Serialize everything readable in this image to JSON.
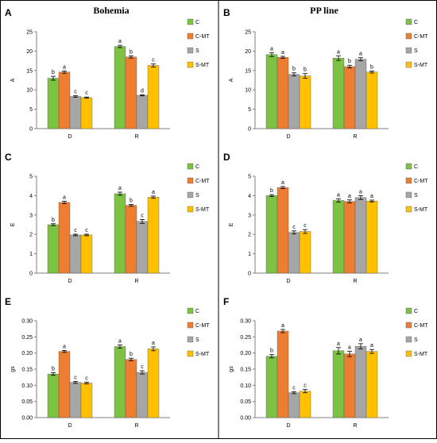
{
  "colors": {
    "C": "#7dc242",
    "C-MT": "#ed7d31",
    "S": "#a6a6a6",
    "S-MT": "#ffc000",
    "frame": "#000000",
    "axis": "#808080",
    "bar_outline": "#595959"
  },
  "columns": [
    {
      "title": "Bohemia"
    },
    {
      "title": "PP line"
    }
  ],
  "legend": [
    "C",
    "C-MT",
    "S",
    "S-MT"
  ],
  "chart_data": [
    {
      "panel_letter": "A",
      "type": "bar",
      "categories": [
        "D",
        "R"
      ],
      "ylabel": "A",
      "ylim": [
        0,
        25
      ],
      "yticks": [
        "0",
        "5",
        "10",
        "15",
        "20",
        "25"
      ],
      "series": [
        {
          "name": "C",
          "values": [
            13.0,
            21.2
          ],
          "errors": [
            0.5,
            0.3
          ],
          "letters": [
            "b",
            "a"
          ]
        },
        {
          "name": "C-MT",
          "values": [
            14.6,
            18.5
          ],
          "errors": [
            0.3,
            0.3
          ],
          "letters": [
            "a",
            "b"
          ]
        },
        {
          "name": "S",
          "values": [
            8.3,
            8.6
          ],
          "errors": [
            0.2,
            0.15
          ],
          "letters": [
            "c",
            "d"
          ]
        },
        {
          "name": "S-MT",
          "values": [
            8.0,
            16.3
          ],
          "errors": [
            0.15,
            0.4
          ],
          "letters": [
            "c",
            "c"
          ]
        }
      ]
    },
    {
      "panel_letter": "B",
      "type": "bar",
      "categories": [
        "D",
        "R"
      ],
      "ylabel": "A",
      "ylim": [
        0,
        25
      ],
      "yticks": [
        "0",
        "5",
        "10",
        "15",
        "20",
        "25"
      ],
      "series": [
        {
          "name": "C",
          "values": [
            19.1,
            18.2
          ],
          "errors": [
            0.5,
            0.6
          ],
          "letters": [
            "a",
            "a"
          ]
        },
        {
          "name": "C-MT",
          "values": [
            18.4,
            16.0
          ],
          "errors": [
            0.25,
            0.35
          ],
          "letters": [
            "a",
            "b"
          ]
        },
        {
          "name": "S",
          "values": [
            14.0,
            17.9
          ],
          "errors": [
            0.4,
            0.4
          ],
          "letters": [
            "b",
            "a"
          ]
        },
        {
          "name": "S-MT",
          "values": [
            13.6,
            14.6
          ],
          "errors": [
            0.6,
            0.25
          ],
          "letters": [
            "b",
            "b"
          ]
        }
      ]
    },
    {
      "panel_letter": "C",
      "type": "bar",
      "categories": [
        "D",
        "R"
      ],
      "ylabel": "E",
      "ylim": [
        0,
        5
      ],
      "yticks": [
        "0",
        "1",
        "2",
        "3",
        "4",
        "5"
      ],
      "series": [
        {
          "name": "C",
          "values": [
            2.5,
            4.1
          ],
          "errors": [
            0.05,
            0.08
          ],
          "letters": [
            "b",
            "a"
          ]
        },
        {
          "name": "C-MT",
          "values": [
            3.65,
            3.5
          ],
          "errors": [
            0.06,
            0.05
          ],
          "letters": [
            "a",
            "b"
          ]
        },
        {
          "name": "S",
          "values": [
            1.97,
            2.67
          ],
          "errors": [
            0.04,
            0.1
          ],
          "letters": [
            "c",
            "c"
          ]
        },
        {
          "name": "S-MT",
          "values": [
            1.97,
            3.92
          ],
          "errors": [
            0.04,
            0.06
          ],
          "letters": [
            "c",
            "a"
          ]
        }
      ]
    },
    {
      "panel_letter": "D",
      "type": "bar",
      "categories": [
        "D",
        "R"
      ],
      "ylabel": "E",
      "ylim": [
        0,
        5
      ],
      "yticks": [
        "0",
        "1",
        "2",
        "3",
        "4",
        "5"
      ],
      "series": [
        {
          "name": "C",
          "values": [
            4.0,
            3.75
          ],
          "errors": [
            0.05,
            0.08
          ],
          "letters": [
            "b",
            "a"
          ]
        },
        {
          "name": "C-MT",
          "values": [
            4.42,
            3.7
          ],
          "errors": [
            0.05,
            0.08
          ],
          "letters": [
            "a",
            "a"
          ]
        },
        {
          "name": "S",
          "values": [
            2.1,
            3.9
          ],
          "errors": [
            0.08,
            0.1
          ],
          "letters": [
            "c",
            "a"
          ]
        },
        {
          "name": "S-MT",
          "values": [
            2.15,
            3.72
          ],
          "errors": [
            0.1,
            0.05
          ],
          "letters": [
            "c",
            "a"
          ]
        }
      ]
    },
    {
      "panel_letter": "E",
      "type": "bar",
      "categories": [
        "D",
        "R"
      ],
      "ylabel": "gs",
      "ylim": [
        0,
        0.3
      ],
      "yticks": [
        "0.00",
        "0.05",
        "0.10",
        "0.15",
        "0.20",
        "0.25",
        "0.30"
      ],
      "series": [
        {
          "name": "C",
          "values": [
            0.135,
            0.22
          ],
          "errors": [
            0.004,
            0.005
          ],
          "letters": [
            "b",
            "a"
          ]
        },
        {
          "name": "C-MT",
          "values": [
            0.205,
            0.18
          ],
          "errors": [
            0.003,
            0.004
          ],
          "letters": [
            "a",
            "b"
          ]
        },
        {
          "name": "S",
          "values": [
            0.109,
            0.14
          ],
          "errors": [
            0.003,
            0.005
          ],
          "letters": [
            "c",
            "c"
          ]
        },
        {
          "name": "S-MT",
          "values": [
            0.107,
            0.213
          ],
          "errors": [
            0.003,
            0.006
          ],
          "letters": [
            "c",
            "a"
          ]
        }
      ]
    },
    {
      "panel_letter": "F",
      "type": "bar",
      "categories": [
        "D",
        "R"
      ],
      "ylabel": "gs",
      "ylim": [
        0,
        0.3
      ],
      "yticks": [
        "0.00",
        "0.05",
        "0.10",
        "0.15",
        "0.20",
        "0.25",
        "0.30"
      ],
      "series": [
        {
          "name": "C",
          "values": [
            0.19,
            0.207
          ],
          "errors": [
            0.005,
            0.01
          ],
          "letters": [
            "b",
            "a"
          ]
        },
        {
          "name": "C-MT",
          "values": [
            0.268,
            0.197
          ],
          "errors": [
            0.005,
            0.008
          ],
          "letters": [
            "a",
            "a"
          ]
        },
        {
          "name": "S",
          "values": [
            0.077,
            0.221
          ],
          "errors": [
            0.003,
            0.008
          ],
          "letters": [
            "c",
            "a"
          ]
        },
        {
          "name": "S-MT",
          "values": [
            0.082,
            0.205
          ],
          "errors": [
            0.005,
            0.006
          ],
          "letters": [
            "c",
            "a"
          ]
        }
      ]
    }
  ]
}
